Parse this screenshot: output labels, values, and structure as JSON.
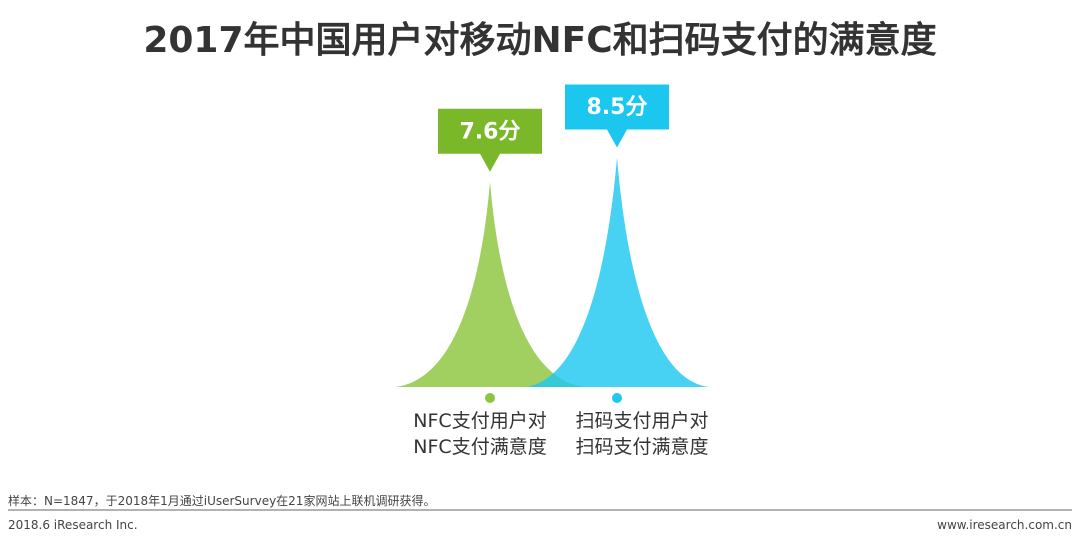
{
  "chart_data": {
    "type": "spike",
    "title": "2017年中国用户对移动NFC和扫码支付的满意度",
    "categories": [
      "NFC支付用户对\nNFC支付满意度",
      "扫码支付用户对\n扫码支付满意度"
    ],
    "values": [
      7.6,
      8.5
    ],
    "value_labels": [
      "7.6分",
      "8.5分"
    ],
    "colors": [
      "#8cc63e",
      "#1ec8f0"
    ],
    "label_colors": [
      "#7ab829",
      "#1cc7ef"
    ]
  },
  "footer": {
    "note": "样本：N=1847，于2018年1月通过iUserSurvey在21家网站上联机调研获得。",
    "source": "2018.6 iResearch Inc.",
    "website": "www.iresearch.com.cn"
  }
}
